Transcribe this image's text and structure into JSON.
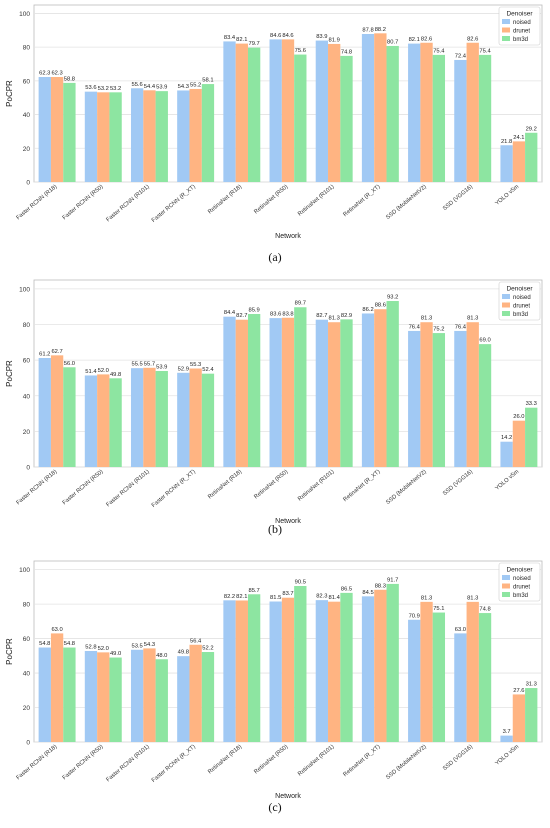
{
  "figure": {
    "legend_title": "Denoiser",
    "series_names": [
      "noised",
      "drunet",
      "bm3d"
    ],
    "series_colors": [
      "#a1c9f4",
      "#ffb482",
      "#8de5a1"
    ],
    "categories": [
      "Faster RCNN (R18)",
      "Faster RCNN (R50)",
      "Faster RCNN (R101)",
      "Faster RCNN (R_XT)",
      "RetinaNet (R18)",
      "RetinaNet (R50)",
      "RetinaNet (R101)",
      "RetinaNet (R_XT)",
      "SSD (MobileNetV2)",
      "SSD (VGG16)",
      "YOLO v5m"
    ],
    "xlabel": "Network",
    "ylabel": "PoCPR",
    "yticks": [
      0,
      20,
      40,
      60,
      80,
      100
    ]
  },
  "chart_data": [
    {
      "type": "bar",
      "caption": "(a)",
      "title": "",
      "xlabel": "Network",
      "ylabel": "PoCPR",
      "ylim": [
        0,
        105
      ],
      "grid": true,
      "legend_position": "top-right",
      "categories": [
        "Faster RCNN (R18)",
        "Faster RCNN (R50)",
        "Faster RCNN (R101)",
        "Faster RCNN (R_XT)",
        "RetinaNet (R18)",
        "RetinaNet (R50)",
        "RetinaNet (R101)",
        "RetinaNet (R_XT)",
        "SSD (MobileNetV2)",
        "SSD (VGG16)",
        "YOLO v5m"
      ],
      "series": [
        {
          "name": "noised",
          "values": [
            62.3,
            53.6,
            55.6,
            54.3,
            83.4,
            84.6,
            83.9,
            87.8,
            82.1,
            72.4,
            21.8
          ]
        },
        {
          "name": "drunet",
          "values": [
            62.3,
            53.2,
            54.4,
            55.2,
            82.1,
            84.6,
            81.9,
            88.2,
            82.6,
            82.6,
            24.1
          ]
        },
        {
          "name": "bm3d",
          "values": [
            58.8,
            53.2,
            53.9,
            58.1,
            79.7,
            75.6,
            74.8,
            80.7,
            75.4,
            75.4,
            29.2
          ]
        }
      ]
    },
    {
      "type": "bar",
      "caption": "(b)",
      "title": "",
      "xlabel": "Network",
      "ylabel": "PoCPR",
      "ylim": [
        0,
        105
      ],
      "grid": true,
      "legend_position": "top-right",
      "categories": [
        "Faster RCNN (R18)",
        "Faster RCNN (R50)",
        "Faster RCNN (R101)",
        "Faster RCNN (R_XT)",
        "RetinaNet (R18)",
        "RetinaNet (R50)",
        "RetinaNet (R101)",
        "RetinaNet (R_XT)",
        "SSD (MobileNetV2)",
        "SSD (VGG16)",
        "YOLO v5m"
      ],
      "series": [
        {
          "name": "noised",
          "values": [
            61.2,
            51.4,
            55.5,
            52.9,
            84.4,
            83.6,
            82.7,
            86.2,
            76.4,
            76.4,
            14.2
          ]
        },
        {
          "name": "drunet",
          "values": [
            62.7,
            52.0,
            55.7,
            55.3,
            82.7,
            83.8,
            81.3,
            88.6,
            81.3,
            81.3,
            26.0
          ]
        },
        {
          "name": "bm3d",
          "values": [
            56.0,
            49.8,
            53.9,
            52.4,
            85.9,
            89.7,
            82.9,
            93.2,
            75.2,
            69.0,
            33.3
          ]
        }
      ]
    },
    {
      "type": "bar",
      "caption": "(c)",
      "title": "",
      "xlabel": "Network",
      "ylabel": "PoCPR",
      "ylim": [
        0,
        105
      ],
      "grid": true,
      "legend_position": "top-right",
      "categories": [
        "Faster RCNN (R18)",
        "Faster RCNN (R50)",
        "Faster RCNN (R101)",
        "Faster RCNN (R_XT)",
        "RetinaNet (R18)",
        "RetinaNet (R50)",
        "RetinaNet (R101)",
        "RetinaNet (R_XT)",
        "SSD (MobileNetV2)",
        "SSD (VGG16)",
        "YOLO v5m"
      ],
      "series": [
        {
          "name": "noised",
          "values": [
            54.8,
            52.8,
            53.5,
            49.8,
            82.2,
            81.5,
            82.3,
            84.5,
            70.9,
            63.0,
            3.7
          ]
        },
        {
          "name": "drunet",
          "values": [
            63.0,
            52.0,
            54.3,
            56.4,
            82.1,
            83.7,
            81.4,
            88.3,
            81.3,
            81.3,
            27.6
          ]
        },
        {
          "name": "bm3d",
          "values": [
            54.8,
            49.0,
            48.0,
            52.2,
            85.7,
            90.5,
            86.5,
            91.7,
            75.1,
            74.8,
            31.3
          ]
        }
      ]
    }
  ]
}
